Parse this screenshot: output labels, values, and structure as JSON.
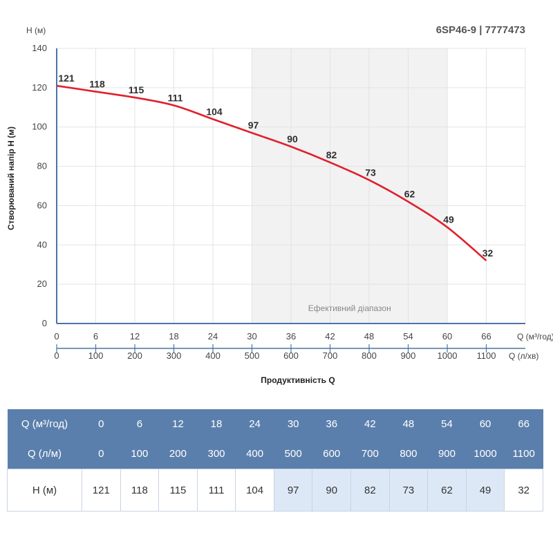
{
  "chart_data": {
    "type": "line",
    "title": "6SP46-9 | 7777473",
    "ylabel": "Створюваний напір H (м)",
    "y_unit_label": "H (м)",
    "xlabel": "Продуктивність Q",
    "x_unit_label": "Q (м³/год)",
    "x2_unit_label": "Q (л/хв)",
    "x": [
      0,
      6,
      12,
      18,
      24,
      30,
      36,
      42,
      48,
      54,
      60,
      66
    ],
    "x2": [
      0,
      100,
      200,
      300,
      400,
      500,
      600,
      700,
      800,
      900,
      1000,
      1100
    ],
    "series": [
      {
        "values": [
          121,
          118,
          115,
          111,
          104,
          97,
          90,
          82,
          73,
          62,
          49,
          32
        ],
        "color": "#e0202e"
      }
    ],
    "xlim": [
      0,
      72
    ],
    "ylim": [
      0,
      140
    ],
    "yticks": [
      0,
      20,
      40,
      60,
      80,
      100,
      120,
      140
    ],
    "grid": true,
    "efficient_range": {
      "label": "Ефективний діапазон",
      "from": 30,
      "to": 60,
      "color": "#f2f2f2"
    }
  },
  "table": {
    "rows": [
      {
        "label": "Q (м³/год)",
        "cells": [
          "0",
          "6",
          "12",
          "18",
          "24",
          "30",
          "36",
          "42",
          "48",
          "54",
          "60",
          "66"
        ]
      },
      {
        "label": "Q (л/м)",
        "cells": [
          "0",
          "100",
          "200",
          "300",
          "400",
          "500",
          "600",
          "700",
          "800",
          "900",
          "1000",
          "1100"
        ]
      },
      {
        "label": "H (м)",
        "cells": [
          "121",
          "118",
          "115",
          "111",
          "104",
          "97",
          "90",
          "82",
          "73",
          "62",
          "49",
          "32"
        ]
      }
    ],
    "highlight_from": 5,
    "highlight_to": 10,
    "header_color": "#5b7fac",
    "highlight_color": "#dde8f7"
  }
}
